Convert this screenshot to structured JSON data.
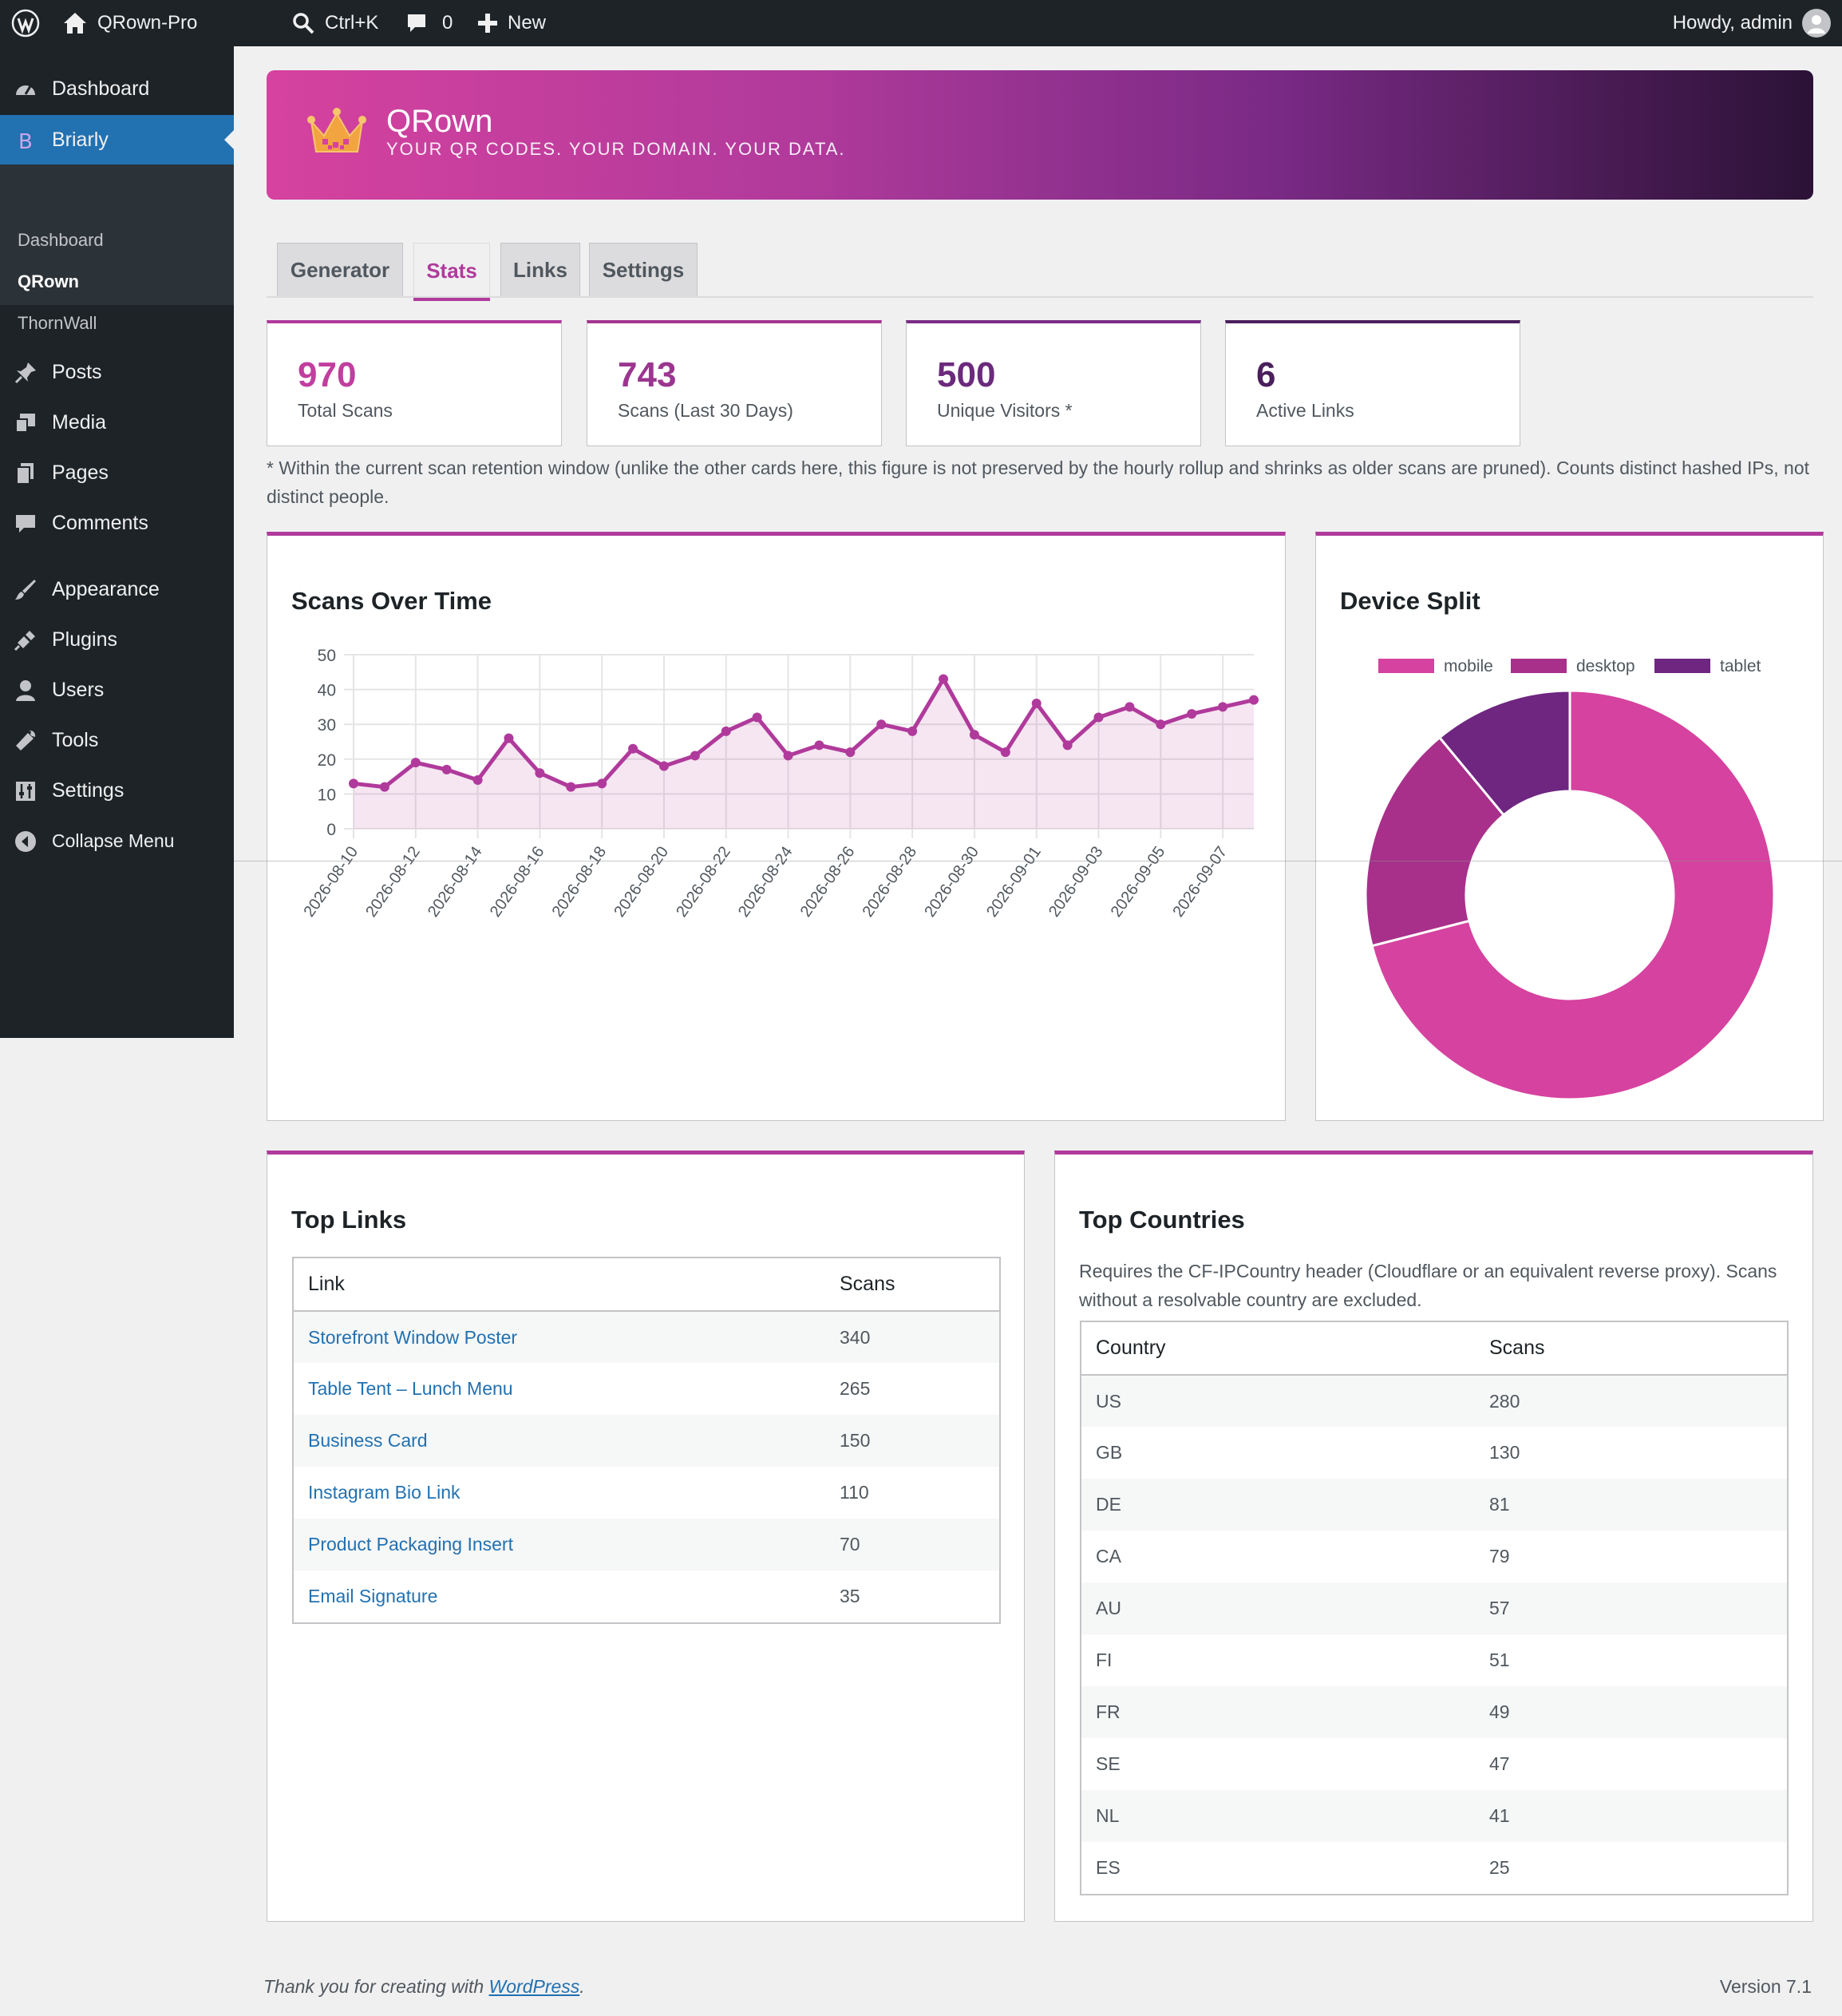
{
  "adminbar": {
    "site_name": "QRown-Pro",
    "search_shortcut": "Ctrl+K",
    "comments_count": "0",
    "new_label": "New",
    "howdy": "Howdy, admin"
  },
  "sidebar": {
    "items": [
      {
        "label": "Dashboard",
        "icon": "dashboard-icon"
      },
      {
        "label": "Briarly",
        "icon": "briarly-icon"
      },
      {
        "label": "Posts",
        "icon": "pin-icon"
      },
      {
        "label": "Media",
        "icon": "media-icon"
      },
      {
        "label": "Pages",
        "icon": "pages-icon"
      },
      {
        "label": "Comments",
        "icon": "comment-icon"
      },
      {
        "label": "Appearance",
        "icon": "brush-icon"
      },
      {
        "label": "Plugins",
        "icon": "plugin-icon"
      },
      {
        "label": "Users",
        "icon": "user-icon"
      },
      {
        "label": "Tools",
        "icon": "wrench-icon"
      },
      {
        "label": "Settings",
        "icon": "settings-icon"
      },
      {
        "label": "Collapse Menu",
        "icon": "collapse-icon"
      }
    ],
    "submenu": [
      "Dashboard",
      "QRown",
      "ThornWall"
    ]
  },
  "banner": {
    "title": "QRown",
    "tagline": "YOUR QR CODES. YOUR DOMAIN. YOUR DATA."
  },
  "tabs": [
    "Generator",
    "Stats",
    "Links",
    "Settings"
  ],
  "stats": [
    {
      "value": "970",
      "label": "Total Scans",
      "color": "#b03a9b"
    },
    {
      "value": "743",
      "label": "Scans (Last 30 Days)",
      "color": "#9b3590"
    },
    {
      "value": "500",
      "label": "Unique Visitors *",
      "color": "#6b2a7c"
    },
    {
      "value": "6",
      "label": "Active Links",
      "color": "#4a1f5c"
    }
  ],
  "footnote": "* Within the current scan retention window (unlike the other cards here, this figure is not preserved by the hourly rollup and shrinks as older scans are pruned). Counts distinct hashed IPs, not distinct people.",
  "scans_panel": {
    "title": "Scans Over Time"
  },
  "device_panel": {
    "title": "Device Split"
  },
  "top_links": {
    "title": "Top Links",
    "headers": [
      "Link",
      "Scans"
    ],
    "rows": [
      {
        "name": "Storefront Window Poster",
        "scans": "340"
      },
      {
        "name": "Table Tent – Lunch Menu",
        "scans": "265"
      },
      {
        "name": "Business Card",
        "scans": "150"
      },
      {
        "name": "Instagram Bio Link",
        "scans": "110"
      },
      {
        "name": "Product Packaging Insert",
        "scans": "70"
      },
      {
        "name": "Email Signature",
        "scans": "35"
      }
    ]
  },
  "top_countries": {
    "title": "Top Countries",
    "note": "Requires the CF-IPCountry header (Cloudflare or an equivalent reverse proxy). Scans without a resolvable country are excluded.",
    "headers": [
      "Country",
      "Scans"
    ],
    "rows": [
      {
        "name": "US",
        "scans": "280"
      },
      {
        "name": "GB",
        "scans": "130"
      },
      {
        "name": "DE",
        "scans": "81"
      },
      {
        "name": "CA",
        "scans": "79"
      },
      {
        "name": "AU",
        "scans": "57"
      },
      {
        "name": "FI",
        "scans": "51"
      },
      {
        "name": "FR",
        "scans": "49"
      },
      {
        "name": "SE",
        "scans": "47"
      },
      {
        "name": "NL",
        "scans": "41"
      },
      {
        "name": "ES",
        "scans": "25"
      }
    ]
  },
  "footer": {
    "thanks_prefix": "Thank you for creating with ",
    "thanks_link": "WordPress",
    "thanks_suffix": ".",
    "version": "Version 7.1"
  },
  "chart_data": [
    {
      "type": "area",
      "title": "Scans Over Time",
      "ylim": [
        0,
        50
      ],
      "yticks": [
        0,
        10,
        20,
        30,
        40,
        50
      ],
      "x": [
        "2026-08-10",
        "2026-08-11",
        "2026-08-12",
        "2026-08-13",
        "2026-08-14",
        "2026-08-15",
        "2026-08-16",
        "2026-08-17",
        "2026-08-18",
        "2026-08-19",
        "2026-08-20",
        "2026-08-21",
        "2026-08-22",
        "2026-08-23",
        "2026-08-24",
        "2026-08-25",
        "2026-08-26",
        "2026-08-27",
        "2026-08-28",
        "2026-08-29",
        "2026-08-30",
        "2026-08-31",
        "2026-09-01",
        "2026-09-02",
        "2026-09-03",
        "2026-09-04",
        "2026-09-05",
        "2026-09-06",
        "2026-09-07",
        "2026-09-08"
      ],
      "xticks": [
        "2026-08-10",
        "2026-08-12",
        "2026-08-14",
        "2026-08-16",
        "2026-08-18",
        "2026-08-20",
        "2026-08-22",
        "2026-08-24",
        "2026-08-26",
        "2026-08-28",
        "2026-08-30",
        "2026-09-01",
        "2026-09-03",
        "2026-09-05",
        "2026-09-07"
      ],
      "values": [
        13,
        12,
        19,
        17,
        14,
        26,
        16,
        12,
        13,
        23,
        18,
        21,
        28,
        32,
        21,
        24,
        22,
        30,
        28,
        43,
        27,
        22,
        36,
        24,
        32,
        35,
        30,
        33,
        35,
        37
      ],
      "grid": true,
      "color": "#b03a9b"
    },
    {
      "type": "pie",
      "title": "Device Split",
      "labels": [
        "mobile",
        "desktop",
        "tablet"
      ],
      "values": [
        71,
        18,
        11
      ],
      "colors": [
        "#d6429f",
        "#a8308a",
        "#6e2680"
      ],
      "legend": "top"
    }
  ]
}
